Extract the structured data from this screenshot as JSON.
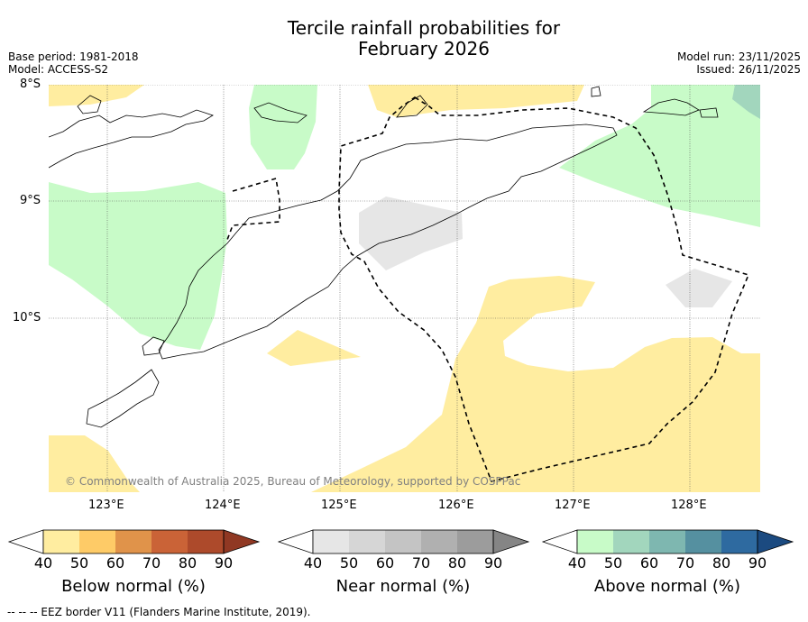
{
  "title": {
    "line1": "Tercile rainfall probabilities for",
    "line2": "February 2026"
  },
  "meta_left": {
    "base_period": "Base period: 1981-2018",
    "model": "Model: ACCESS-S2"
  },
  "meta_right": {
    "model_run": "Model run: 23/11/2025",
    "issued": "Issued: 26/11/2025"
  },
  "latitude_labels": [
    "8°S",
    "9°S",
    "10°S"
  ],
  "longitude_labels": [
    "123°E",
    "124°E",
    "125°E",
    "126°E",
    "127°E",
    "128°E"
  ],
  "copyright": "© Commonwealth of Australia 2025, Bureau of Meteorology, supported by COSPPac",
  "colorbars": [
    {
      "name": "below",
      "title": "Below normal (%)",
      "ticks": [
        "40",
        "50",
        "60",
        "70",
        "80",
        "90"
      ],
      "colors": [
        "#ffeda0",
        "#fecb67",
        "#e0934a",
        "#ca6337",
        "#ad4a2b",
        "#903823"
      ]
    },
    {
      "name": "near",
      "title": "Near normal (%)",
      "ticks": [
        "40",
        "50",
        "60",
        "70",
        "80",
        "90"
      ],
      "colors": [
        "#e6e6e6",
        "#d6d6d6",
        "#c4c4c4",
        "#b0b0b0",
        "#9c9c9c",
        "#858585"
      ]
    },
    {
      "name": "above",
      "title": "Above normal (%)",
      "ticks": [
        "40",
        "50",
        "60",
        "70",
        "80",
        "90"
      ],
      "colors": [
        "#c8fbc8",
        "#a2d6bd",
        "#7eb7b0",
        "#5590a0",
        "#2e6aa0",
        "#1b4a80"
      ]
    }
  ],
  "footer": "--  --  -- EEZ border V11 (Flanders Marine Institute, 2019).",
  "map_colors": {
    "below_light": "#ffeda0",
    "near_light": "#e6e6e6",
    "above_light": "#c8fbc8",
    "above_mid": "#a2d6bd"
  }
}
